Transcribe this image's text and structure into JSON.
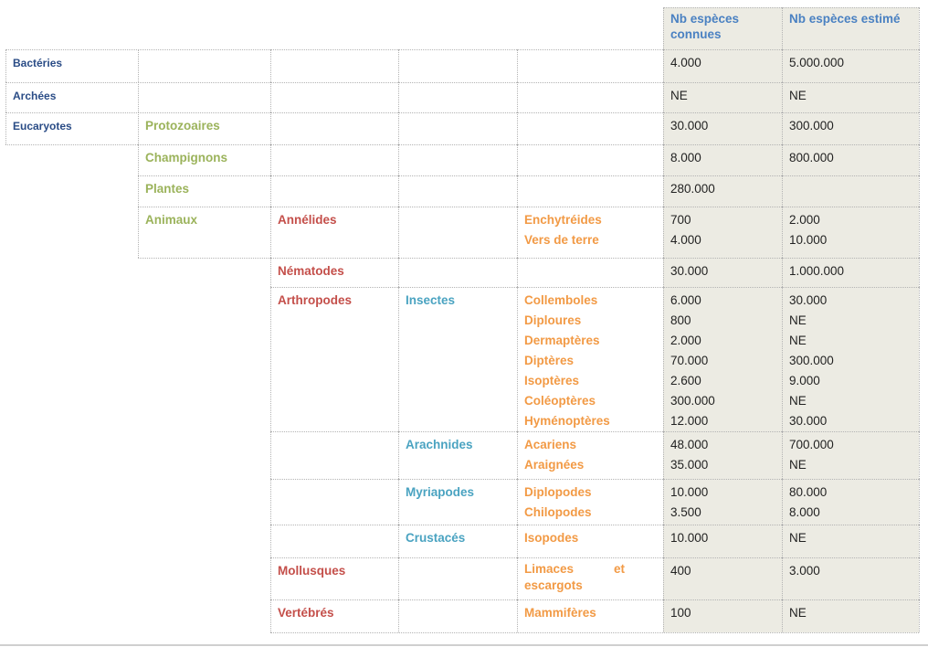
{
  "header": {
    "known_label": "Nb espèces connues",
    "estimated_label": "Nb espèces estimé"
  },
  "rows": [
    {
      "domain": "Bactéries",
      "kingdom": "",
      "phylum": "",
      "cls": "",
      "groups": [],
      "known": [
        "4.000"
      ],
      "estimated": [
        "5.000.000"
      ]
    },
    {
      "domain": "Archées",
      "kingdom": "",
      "phylum": "",
      "cls": "",
      "groups": [],
      "known": [
        "NE"
      ],
      "estimated": [
        "NE"
      ]
    },
    {
      "domain": "Eucaryotes",
      "kingdom": "Protozoaires",
      "phylum": "",
      "cls": "",
      "groups": [],
      "known": [
        "30.000"
      ],
      "estimated": [
        "300.000"
      ]
    },
    {
      "domain": "",
      "kingdom": "Champignons",
      "phylum": "",
      "cls": "",
      "groups": [],
      "known": [
        "8.000"
      ],
      "estimated": [
        "800.000"
      ]
    },
    {
      "domain": "",
      "kingdom": "Plantes",
      "phylum": "",
      "cls": "",
      "groups": [],
      "known": [
        "280.000"
      ],
      "estimated": [
        ""
      ]
    },
    {
      "domain": "",
      "kingdom": "Animaux",
      "phylum": "Annélides",
      "cls": "",
      "groups": [
        "Enchytréides",
        "Vers de terre"
      ],
      "known": [
        "700",
        "4.000"
      ],
      "estimated": [
        "2.000",
        "10.000"
      ]
    },
    {
      "domain": "",
      "kingdom": "",
      "phylum": "Nématodes",
      "cls": "",
      "groups": [],
      "known": [
        "30.000"
      ],
      "estimated": [
        "1.000.000"
      ]
    },
    {
      "domain": "",
      "kingdom": "",
      "phylum": "Arthropodes",
      "cls": "Insectes",
      "groups": [
        "Collemboles",
        "Diploures",
        "Dermaptères",
        "Diptères",
        "Isoptères",
        "Coléoptères",
        "Hyménoptères"
      ],
      "known": [
        "6.000",
        "800",
        "2.000",
        "70.000",
        "2.600",
        "300.000",
        "12.000"
      ],
      "estimated": [
        "30.000",
        "NE",
        "NE",
        "300.000",
        "9.000",
        "NE",
        "30.000"
      ]
    },
    {
      "domain": "",
      "kingdom": "",
      "phylum": "",
      "cls": "Arachnides",
      "groups": [
        "Acariens",
        "Araignées"
      ],
      "known": [
        "48.000",
        "35.000"
      ],
      "estimated": [
        "700.000",
        "NE"
      ]
    },
    {
      "domain": "",
      "kingdom": "",
      "phylum": "",
      "cls": "Myriapodes",
      "groups": [
        "Diplopodes",
        "Chilopodes"
      ],
      "known": [
        "10.000",
        "3.500"
      ],
      "estimated": [
        "80.000",
        "8.000"
      ]
    },
    {
      "domain": "",
      "kingdom": "",
      "phylum": "",
      "cls": "Crustacés",
      "groups": [
        "Isopodes"
      ],
      "known": [
        "10.000"
      ],
      "estimated": [
        "NE"
      ]
    },
    {
      "domain": "",
      "kingdom": "",
      "phylum": "Mollusques",
      "cls": "",
      "groups": [
        "Limaces et escargots"
      ],
      "known": [
        "400"
      ],
      "estimated": [
        "3.000"
      ]
    },
    {
      "domain": "",
      "kingdom": "",
      "phylum": "Vertébrés",
      "cls": "",
      "groups": [
        "Mammifères"
      ],
      "known": [
        "100"
      ],
      "estimated": [
        "NE"
      ]
    }
  ]
}
